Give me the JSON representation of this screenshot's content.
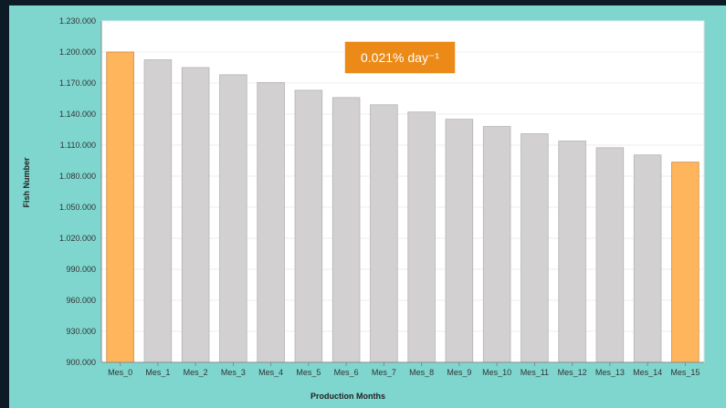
{
  "chart_data": {
    "type": "bar",
    "ylabel": "Fish Number",
    "xlabel": "Production Months",
    "ylim": [
      900000,
      1230000
    ],
    "yticks": [
      900000,
      930000,
      960000,
      990000,
      1020000,
      1050000,
      1080000,
      1110000,
      1140000,
      1170000,
      1200000,
      1230000
    ],
    "ytick_labels": [
      "900.000",
      "930.000",
      "960.000",
      "990.000",
      "1.020.000",
      "1.050.000",
      "1.080.000",
      "1.110.000",
      "1.140.000",
      "1.170.000",
      "1.200.000",
      "1.230.000"
    ],
    "categories": [
      "Mes_0",
      "Mes_1",
      "Mes_2",
      "Mes_3",
      "Mes_4",
      "Mes_5",
      "Mes_6",
      "Mes_7",
      "Mes_8",
      "Mes_9",
      "Mes_10",
      "Mes_11",
      "Mes_12",
      "Mes_13",
      "Mes_14",
      "Mes_15"
    ],
    "values": [
      1200000,
      1192500,
      1185000,
      1178000,
      1170500,
      1163000,
      1156000,
      1149000,
      1142000,
      1135000,
      1128000,
      1121000,
      1114000,
      1107500,
      1100500,
      1093500
    ],
    "highlight_categories": [
      "Mes_0",
      "Mes_15"
    ],
    "grid": true,
    "annotation": "0.021% day⁻¹",
    "colors": {
      "bar": "#d2d0d0",
      "bar_highlight": "#ffb55c",
      "annotation_bg": "#ec8a18",
      "frame": "#7fd6cf",
      "plot_bg": "#ffffff",
      "grid": "#eeeeee"
    }
  }
}
